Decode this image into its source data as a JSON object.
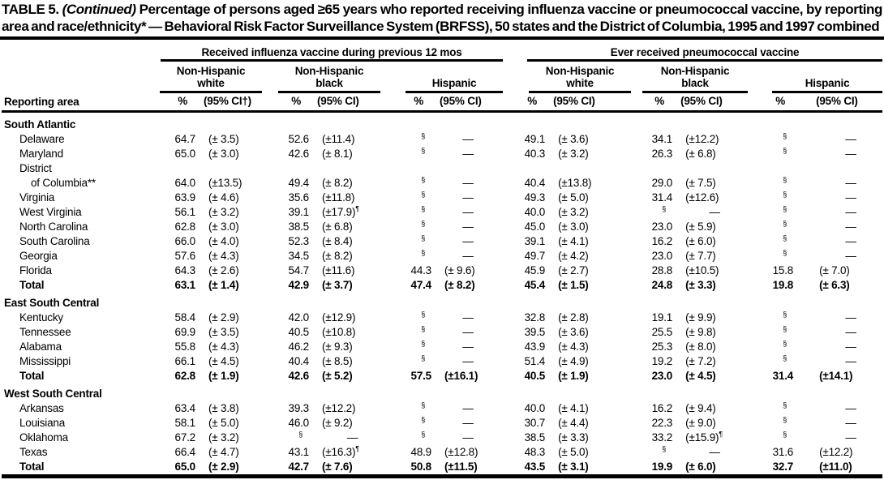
{
  "title": {
    "prefix": "TABLE 5.",
    "continued": "(Continued)",
    "rest": "Percentage of persons aged ≥65 years who reported receiving influenza vaccine or pneumococcal vaccine, by reporting area and race/ethnicity* — Behavioral Risk Factor Surveillance System (BRFSS), 50 states and the District of Columbia, 1995 and 1997 combined"
  },
  "header": {
    "reporting_area": "Reporting area",
    "groups": [
      {
        "label": "Received influenza vaccine during previous 12 mos"
      },
      {
        "label": "Ever received pneumococcal vaccine"
      }
    ],
    "subgroups": [
      {
        "top": "Non-Hispanic",
        "bottom": "white"
      },
      {
        "top": "Non-Hispanic",
        "bottom": "black"
      },
      {
        "top": "",
        "bottom": "Hispanic"
      },
      {
        "top": "Non-Hispanic",
        "bottom": "white"
      },
      {
        "top": "Non-Hispanic",
        "bottom": "black"
      },
      {
        "top": "",
        "bottom": "Hispanic"
      }
    ],
    "pct_label": "%",
    "ci_labels": [
      "(95% CI†)",
      "(95% CI)",
      "(95% CI)",
      "(95% CI)",
      "(95% CI)",
      "(95% CI)"
    ]
  },
  "sections": [
    {
      "name": "South Atlantic",
      "rows": [
        {
          "area": "Delaware",
          "values": [
            "64.7",
            "(± 3.5)",
            "52.6",
            "(±11.4)",
            "§",
            "—",
            "49.1",
            "(± 3.6)",
            "34.1",
            "(±12.2)",
            "§",
            "—"
          ]
        },
        {
          "area": "Maryland",
          "values": [
            "65.0",
            "(± 3.0)",
            "42.6",
            "(± 8.1)",
            "§",
            "—",
            "40.3",
            "(± 3.2)",
            "26.3",
            "(± 6.8)",
            "§",
            "—"
          ]
        },
        {
          "area_lines": [
            "District",
            "of Columbia**"
          ],
          "values": [
            "64.0",
            "(±13.5)",
            "49.4",
            "(± 8.2)",
            "§",
            "—",
            "40.4",
            "(±13.8)",
            "29.0",
            "(± 7.5)",
            "§",
            "—"
          ]
        },
        {
          "area": "Virginia",
          "values": [
            "63.9",
            "(± 4.6)",
            "35.6",
            "(±11.8)",
            "§",
            "—",
            "49.3",
            "(± 5.0)",
            "31.4",
            "(±12.6)",
            "§",
            "—"
          ]
        },
        {
          "area": "West Virginia",
          "values": [
            "56.1",
            "(± 3.2)",
            "39.1",
            "(±17.9)¶",
            "§",
            "—",
            "40.0",
            "(± 3.2)",
            "§",
            "—",
            "§",
            "—"
          ]
        },
        {
          "area": "North Carolina",
          "values": [
            "62.8",
            "(± 3.0)",
            "38.5",
            "(± 6.8)",
            "§",
            "—",
            "45.0",
            "(± 3.0)",
            "23.0",
            "(± 5.9)",
            "§",
            "—"
          ]
        },
        {
          "area": "South Carolina",
          "values": [
            "66.0",
            "(± 4.0)",
            "52.3",
            "(± 8.4)",
            "§",
            "—",
            "39.1",
            "(± 4.1)",
            "16.2",
            "(± 6.0)",
            "§",
            "—"
          ]
        },
        {
          "area": "Georgia",
          "values": [
            "57.6",
            "(± 4.3)",
            "34.5",
            "(± 8.2)",
            "§",
            "—",
            "49.7",
            "(± 4.2)",
            "23.0",
            "(± 7.7)",
            "§",
            "—"
          ]
        },
        {
          "area": "Florida",
          "values": [
            "64.3",
            "(± 2.6)",
            "54.7",
            "(±11.6)",
            "44.3",
            "(± 9.6)",
            "45.9",
            "(± 2.7)",
            "28.8",
            "(±10.5)",
            "15.8",
            "(± 7.0)"
          ]
        }
      ],
      "total": {
        "area": "Total",
        "values": [
          "63.1",
          "(± 1.4)",
          "42.9",
          "(± 3.7)",
          "47.4",
          "(± 8.2)",
          "45.4",
          "(± 1.5)",
          "24.8",
          "(± 3.3)",
          "19.8",
          "(± 6.3)"
        ]
      }
    },
    {
      "name": "East South Central",
      "rows": [
        {
          "area": "Kentucky",
          "values": [
            "58.4",
            "(± 2.9)",
            "42.0",
            "(±12.9)",
            "§",
            "—",
            "32.8",
            "(± 2.8)",
            "19.1",
            "(± 9.9)",
            "§",
            "—"
          ]
        },
        {
          "area": "Tennessee",
          "values": [
            "69.9",
            "(± 3.5)",
            "40.5",
            "(±10.8)",
            "§",
            "—",
            "39.5",
            "(± 3.6)",
            "25.5",
            "(± 9.8)",
            "§",
            "—"
          ]
        },
        {
          "area": "Alabama",
          "values": [
            "55.8",
            "(± 4.3)",
            "46.2",
            "(± 9.3)",
            "§",
            "—",
            "43.9",
            "(± 4.3)",
            "25.3",
            "(± 8.0)",
            "§",
            "—"
          ]
        },
        {
          "area": "Mississippi",
          "values": [
            "66.1",
            "(± 4.5)",
            "40.4",
            "(± 8.5)",
            "§",
            "—",
            "51.4",
            "(± 4.9)",
            "19.2",
            "(± 7.2)",
            "§",
            "—"
          ]
        }
      ],
      "total": {
        "area": "Total",
        "values": [
          "62.8",
          "(± 1.9)",
          "42.6",
          "(± 5.2)",
          "57.5",
          "(±16.1)",
          "40.5",
          "(± 1.9)",
          "23.0",
          "(± 4.5)",
          "31.4",
          "(±14.1)"
        ]
      }
    },
    {
      "name": "West South Central",
      "rows": [
        {
          "area": "Arkansas",
          "values": [
            "63.4",
            "(± 3.8)",
            "39.3",
            "(±12.2)",
            "§",
            "—",
            "40.0",
            "(± 4.1)",
            "16.2",
            "(± 9.4)",
            "§",
            "—"
          ]
        },
        {
          "area": "Louisiana",
          "values": [
            "58.1",
            "(± 5.0)",
            "46.0",
            "(± 9.2)",
            "§",
            "—",
            "30.7",
            "(± 4.4)",
            "22.3",
            "(± 9.0)",
            "§",
            "—"
          ]
        },
        {
          "area": "Oklahoma",
          "values": [
            "67.2",
            "(± 3.2)",
            "§",
            "—",
            "§",
            "—",
            "38.5",
            "(± 3.3)",
            "33.2",
            "(±15.9)¶",
            "§",
            "—"
          ]
        },
        {
          "area": "Texas",
          "values": [
            "66.4",
            "(± 4.7)",
            "43.1",
            "(±16.3)¶",
            "48.9",
            "(±12.8)",
            "48.3",
            "(± 5.0)",
            "§",
            "—",
            "31.6",
            "(±12.2)"
          ]
        }
      ],
      "total": {
        "area": "Total",
        "values": [
          "65.0",
          "(± 2.9)",
          "42.7",
          "(± 7.6)",
          "50.8",
          "(±11.5)",
          "43.5",
          "(± 3.1)",
          "19.9",
          "(± 6.0)",
          "32.7",
          "(±11.0)"
        ]
      }
    }
  ]
}
